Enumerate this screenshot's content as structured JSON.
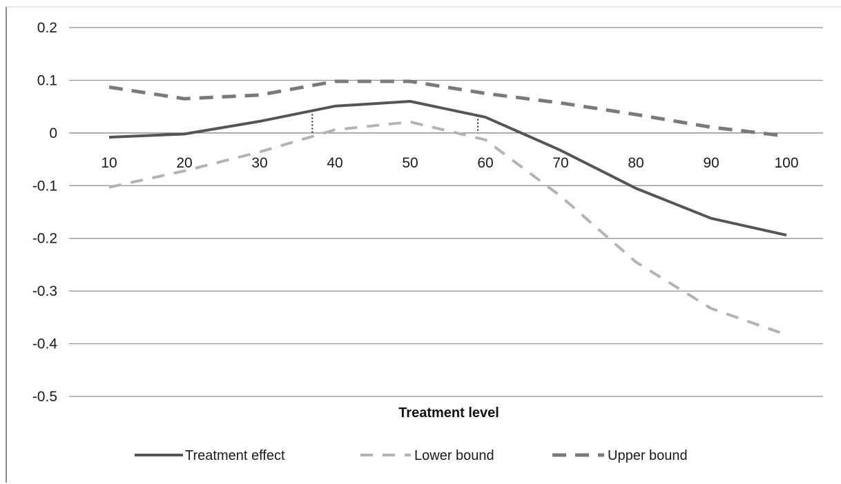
{
  "chart_data": {
    "type": "line",
    "x": [
      10,
      20,
      30,
      40,
      50,
      60,
      70,
      80,
      90,
      100
    ],
    "series": [
      {
        "name": "Treatment effect",
        "values": [
          -0.008,
          -0.002,
          0.022,
          0.051,
          0.06,
          0.03,
          -0.033,
          -0.105,
          -0.162,
          -0.194
        ],
        "color": "#555555",
        "style": "solid"
      },
      {
        "name": "Lower bound",
        "values": [
          -0.103,
          -0.072,
          -0.036,
          0.006,
          0.021,
          -0.013,
          -0.12,
          -0.245,
          -0.333,
          -0.383
        ],
        "color": "#b3b3b3",
        "style": "dashed"
      },
      {
        "name": "Upper bound",
        "values": [
          0.087,
          0.065,
          0.072,
          0.098,
          0.098,
          0.075,
          0.057,
          0.035,
          0.011,
          -0.006
        ],
        "color": "#7a7a7a",
        "style": "dashed"
      }
    ],
    "reference_lines_x": [
      37,
      59
    ],
    "yticks": [
      0.2,
      0.1,
      0,
      -0.1,
      -0.2,
      -0.3,
      -0.4,
      -0.5
    ],
    "ytick_labels": [
      "0.2",
      "0.1",
      "0",
      "-0.1",
      "-0.2",
      "-0.3",
      "-0.4",
      "-0.5"
    ],
    "xtick_labels": [
      "10",
      "20",
      "30",
      "40",
      "50",
      "60",
      "70",
      "80",
      "90",
      "100"
    ],
    "ylim": [
      -0.5,
      0.2
    ],
    "xlabel": "Treatment level",
    "ylabel": "",
    "title": "",
    "grid": true,
    "legend_position": "bottom"
  }
}
